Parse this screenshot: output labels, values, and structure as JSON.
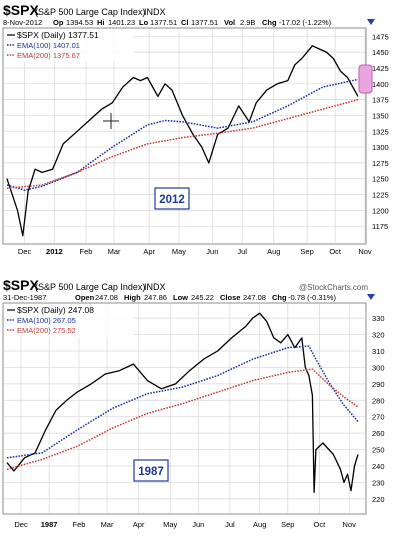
{
  "charts": [
    {
      "symbol": "$SPX",
      "name": "(S&P 500 Large Cap Index)",
      "exchange": "INDX",
      "watermark": "",
      "date": "8-Nov-2012",
      "stats": [
        {
          "label": "Op",
          "value": "1394.53"
        },
        {
          "label": "Hi",
          "value": "1401.23"
        },
        {
          "label": "Lo",
          "value": "1377.51"
        },
        {
          "label": "Cl",
          "value": "1377.51"
        },
        {
          "label": "Vol",
          "value": "2.9B"
        },
        {
          "label": "Chg",
          "value": "-17.02 (-1.22%)"
        }
      ],
      "legend": {
        "price": "$SPX (Daily) 1377.51",
        "ema100": "EMA(100) 1407.01",
        "ema200": "EMA(200) 1375.67"
      },
      "year_label": "2012"
    },
    {
      "symbol": "$SPX",
      "name": "(S&P 500 Large Cap Index)",
      "exchange": "INDX",
      "watermark": "@StockCharts.com",
      "date": "31-Dec-1987",
      "stats": [
        {
          "label": "Open",
          "value": "247.08"
        },
        {
          "label": "High",
          "value": "247.86"
        },
        {
          "label": "Low",
          "value": "245.22"
        },
        {
          "label": "Close",
          "value": "247.08"
        },
        {
          "label": "Chg",
          "value": "-0.78 (-0.31%)"
        }
      ],
      "legend": {
        "price": "$SPX (Daily) 247.08",
        "ema100": "EMA(100) 267.05",
        "ema200": "EMA(200) 275.52"
      },
      "year_label": "1987"
    }
  ],
  "chart_data": [
    {
      "type": "line",
      "title": "$SPX (S&P 500 Large Cap Index) INDX",
      "ylim": [
        1150,
        1485
      ],
      "y_ticks": [
        1175,
        1200,
        1225,
        1250,
        1275,
        1300,
        1325,
        1350,
        1375,
        1400,
        1425,
        1450,
        1475
      ],
      "x_ticks": [
        {
          "label": "Dec",
          "t": 0.05
        },
        {
          "label": "2012",
          "t": 0.135,
          "bold": true
        },
        {
          "label": "Feb",
          "t": 0.225
        },
        {
          "label": "Mar",
          "t": 0.305
        },
        {
          "label": "Apr",
          "t": 0.405
        },
        {
          "label": "May",
          "t": 0.49
        },
        {
          "label": "Jun",
          "t": 0.585
        },
        {
          "label": "Jul",
          "t": 0.67
        },
        {
          "label": "Aug",
          "t": 0.76
        },
        {
          "label": "Sep",
          "t": 0.855
        },
        {
          "label": "Oct",
          "t": 0.935
        },
        {
          "label": "Nov",
          "t": 1.02
        }
      ],
      "series": [
        {
          "name": "$SPX (Daily)",
          "color": "#000000",
          "points": [
            [
              0,
              1250
            ],
            [
              0.03,
              1200
            ],
            [
              0.045,
              1160
            ],
            [
              0.06,
              1230
            ],
            [
              0.08,
              1265
            ],
            [
              0.1,
              1260
            ],
            [
              0.13,
              1265
            ],
            [
              0.16,
              1305
            ],
            [
              0.2,
              1325
            ],
            [
              0.24,
              1345
            ],
            [
              0.27,
              1360
            ],
            [
              0.3,
              1370
            ],
            [
              0.33,
              1395
            ],
            [
              0.36,
              1410
            ],
            [
              0.38,
              1405
            ],
            [
              0.4,
              1410
            ],
            [
              0.43,
              1380
            ],
            [
              0.45,
              1400
            ],
            [
              0.47,
              1390
            ],
            [
              0.5,
              1350
            ],
            [
              0.53,
              1320
            ],
            [
              0.555,
              1300
            ],
            [
              0.575,
              1275
            ],
            [
              0.6,
              1320
            ],
            [
              0.63,
              1330
            ],
            [
              0.66,
              1365
            ],
            [
              0.69,
              1340
            ],
            [
              0.71,
              1370
            ],
            [
              0.74,
              1390
            ],
            [
              0.77,
              1400
            ],
            [
              0.8,
              1405
            ],
            [
              0.82,
              1430
            ],
            [
              0.84,
              1440
            ],
            [
              0.87,
              1460
            ],
            [
              0.89,
              1455
            ],
            [
              0.91,
              1450
            ],
            [
              0.93,
              1440
            ],
            [
              0.95,
              1420
            ],
            [
              0.97,
              1410
            ],
            [
              1.0,
              1380
            ]
          ]
        },
        {
          "name": "EMA(100)",
          "color": "#1d2e9c",
          "points": [
            [
              0,
              1240
            ],
            [
              0.05,
              1232
            ],
            [
              0.1,
              1238
            ],
            [
              0.2,
              1260
            ],
            [
              0.3,
              1300
            ],
            [
              0.4,
              1335
            ],
            [
              0.45,
              1342
            ],
            [
              0.5,
              1340
            ],
            [
              0.55,
              1335
            ],
            [
              0.6,
              1330
            ],
            [
              0.7,
              1340
            ],
            [
              0.8,
              1365
            ],
            [
              0.9,
              1395
            ],
            [
              1.0,
              1407
            ]
          ]
        },
        {
          "name": "EMA(200)",
          "color": "#c43a36",
          "points": [
            [
              0,
              1235
            ],
            [
              0.1,
              1240
            ],
            [
              0.2,
              1260
            ],
            [
              0.3,
              1285
            ],
            [
              0.4,
              1305
            ],
            [
              0.5,
              1315
            ],
            [
              0.6,
              1322
            ],
            [
              0.7,
              1330
            ],
            [
              0.8,
              1345
            ],
            [
              0.9,
              1360
            ],
            [
              1.0,
              1375
            ]
          ]
        }
      ]
    },
    {
      "type": "line",
      "title": "$SPX (S&P 500 Large Cap Index) INDX",
      "ylim": [
        212,
        338
      ],
      "y_ticks": [
        220,
        230,
        240,
        250,
        260,
        270,
        280,
        290,
        300,
        310,
        320,
        330
      ],
      "x_ticks": [
        {
          "label": "Dec",
          "t": 0.04
        },
        {
          "label": "1987",
          "t": 0.12,
          "bold": true
        },
        {
          "label": "Feb",
          "t": 0.205
        },
        {
          "label": "Mar",
          "t": 0.285
        },
        {
          "label": "Apr",
          "t": 0.375
        },
        {
          "label": "May",
          "t": 0.465
        },
        {
          "label": "Jun",
          "t": 0.545
        },
        {
          "label": "Jul",
          "t": 0.635
        },
        {
          "label": "Aug",
          "t": 0.72
        },
        {
          "label": "Sep",
          "t": 0.8
        },
        {
          "label": "Oct",
          "t": 0.89
        },
        {
          "label": "Nov",
          "t": 0.975
        }
      ],
      "series": [
        {
          "name": "$SPX (Daily)",
          "color": "#000000",
          "points": [
            [
              0,
              242
            ],
            [
              0.02,
              237
            ],
            [
              0.05,
              245
            ],
            [
              0.08,
              248
            ],
            [
              0.11,
              262
            ],
            [
              0.14,
              274
            ],
            [
              0.17,
              280
            ],
            [
              0.2,
              285
            ],
            [
              0.24,
              290
            ],
            [
              0.28,
              296
            ],
            [
              0.32,
              298
            ],
            [
              0.36,
              302
            ],
            [
              0.4,
              292
            ],
            [
              0.44,
              287
            ],
            [
              0.48,
              290
            ],
            [
              0.52,
              298
            ],
            [
              0.56,
              305
            ],
            [
              0.6,
              310
            ],
            [
              0.64,
              318
            ],
            [
              0.68,
              325
            ],
            [
              0.7,
              330
            ],
            [
              0.72,
              333
            ],
            [
              0.74,
              328
            ],
            [
              0.76,
              318
            ],
            [
              0.78,
              315
            ],
            [
              0.8,
              320
            ],
            [
              0.82,
              312
            ],
            [
              0.84,
              318
            ],
            [
              0.85,
              300
            ],
            [
              0.86,
              295
            ],
            [
              0.87,
              283
            ],
            [
              0.875,
              224
            ],
            [
              0.88,
              250
            ],
            [
              0.9,
              254
            ],
            [
              0.93,
              247
            ],
            [
              0.95,
              238
            ],
            [
              0.96,
              230
            ],
            [
              0.97,
              235
            ],
            [
              0.98,
              225
            ],
            [
              0.99,
              240
            ],
            [
              1.0,
              247
            ]
          ]
        },
        {
          "name": "EMA(100)",
          "color": "#1d2e9c",
          "points": [
            [
              0,
              245
            ],
            [
              0.1,
              248
            ],
            [
              0.2,
              262
            ],
            [
              0.3,
              275
            ],
            [
              0.4,
              284
            ],
            [
              0.5,
              288
            ],
            [
              0.6,
              295
            ],
            [
              0.7,
              305
            ],
            [
              0.8,
              312
            ],
            [
              0.86,
              313
            ],
            [
              0.88,
              305
            ],
            [
              0.92,
              290
            ],
            [
              0.96,
              277
            ],
            [
              1.0,
              267
            ]
          ]
        },
        {
          "name": "EMA(200)",
          "color": "#c43a36",
          "points": [
            [
              0,
              238
            ],
            [
              0.1,
              244
            ],
            [
              0.2,
              252
            ],
            [
              0.3,
              263
            ],
            [
              0.4,
              272
            ],
            [
              0.5,
              278
            ],
            [
              0.6,
              285
            ],
            [
              0.7,
              292
            ],
            [
              0.8,
              297
            ],
            [
              0.87,
              299
            ],
            [
              0.92,
              289
            ],
            [
              0.96,
              282
            ],
            [
              1.0,
              276
            ]
          ]
        }
      ]
    }
  ],
  "colors": {
    "grid": "#d6d6d6",
    "frame": "#8c8c8c",
    "year_box": "#1f3a9a",
    "highlight": "#e9a6de",
    "highlight_stroke": "#c85ab8"
  }
}
